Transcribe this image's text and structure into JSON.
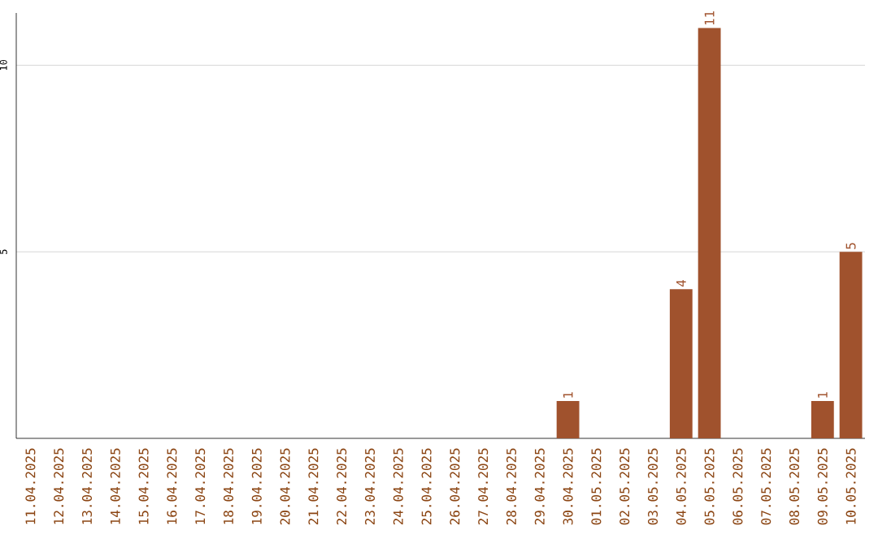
{
  "chart_data": {
    "type": "bar",
    "categories": [
      "11.04.2025",
      "12.04.2025",
      "13.04.2025",
      "14.04.2025",
      "15.04.2025",
      "16.04.2025",
      "17.04.2025",
      "18.04.2025",
      "19.04.2025",
      "20.04.2025",
      "21.04.2025",
      "22.04.2025",
      "23.04.2025",
      "24.04.2025",
      "25.04.2025",
      "26.04.2025",
      "27.04.2025",
      "28.04.2025",
      "29.04.2025",
      "30.04.2025",
      "01.05.2025",
      "02.05.2025",
      "03.05.2025",
      "04.05.2025",
      "05.05.2025",
      "06.05.2025",
      "07.05.2025",
      "08.05.2025",
      "09.05.2025",
      "10.05.2025"
    ],
    "values": [
      0,
      0,
      0,
      0,
      0,
      0,
      0,
      0,
      0,
      0,
      0,
      0,
      0,
      0,
      0,
      0,
      0,
      0,
      0,
      1,
      0,
      0,
      0,
      4,
      11,
      0,
      0,
      0,
      1,
      5
    ],
    "value_labels": [
      null,
      null,
      null,
      null,
      null,
      null,
      null,
      null,
      null,
      null,
      null,
      null,
      null,
      null,
      null,
      null,
      null,
      null,
      null,
      "1",
      null,
      null,
      null,
      "4",
      "11",
      null,
      null,
      null,
      "1",
      "5"
    ],
    "color": "#a0522d",
    "ylim": [
      0,
      11.4
    ],
    "yticks": [
      5,
      10
    ],
    "grid": "y"
  }
}
